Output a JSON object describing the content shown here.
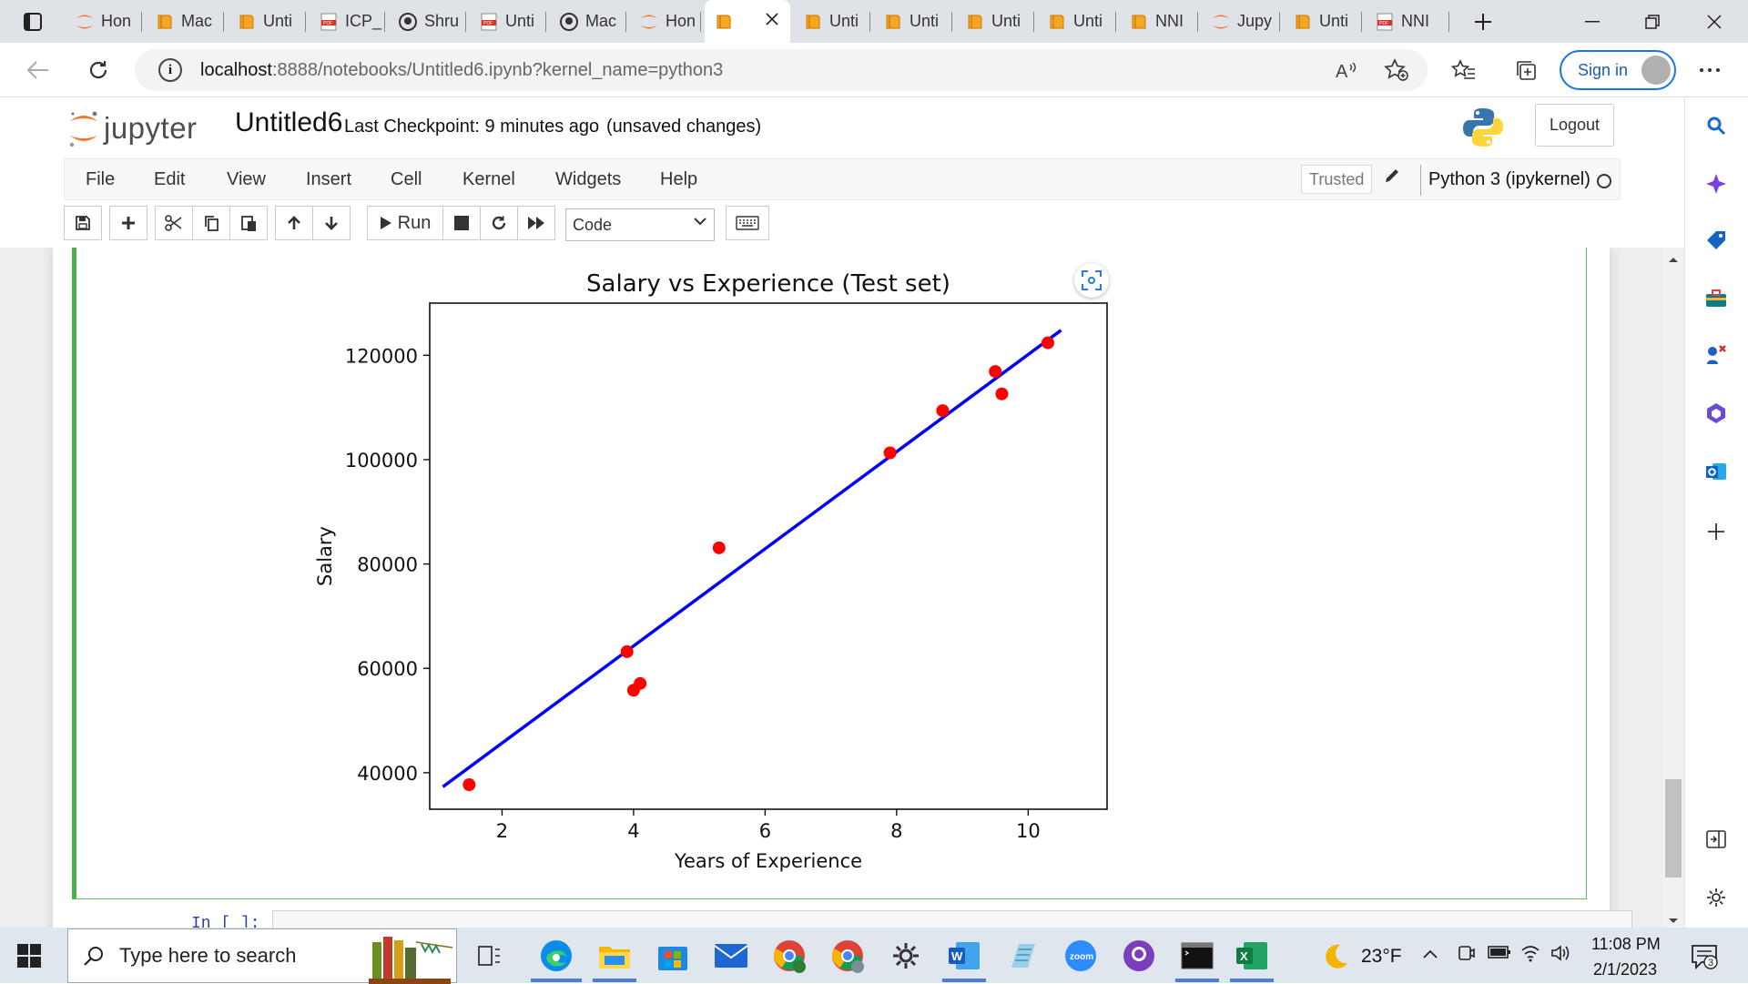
{
  "browser": {
    "tabs": [
      {
        "label": "Hon",
        "icon": "jupyter-tab-icon"
      },
      {
        "label": "Mac",
        "icon": "notebook-tab-icon"
      },
      {
        "label": "Unti",
        "icon": "notebook-tab-icon"
      },
      {
        "label": "ICP_",
        "icon": "pdf-tab-icon"
      },
      {
        "label": "Shru",
        "icon": "github-tab-icon"
      },
      {
        "label": "Unti",
        "icon": "pdf-tab-icon"
      },
      {
        "label": "Mac",
        "icon": "github-tab-icon"
      },
      {
        "label": "Hon",
        "icon": "jupyter-tab-icon"
      },
      {
        "label": "",
        "icon": "notebook-tab-icon",
        "active": true
      },
      {
        "label": "Unti",
        "icon": "notebook-tab-icon"
      },
      {
        "label": "Unti",
        "icon": "notebook-tab-icon"
      },
      {
        "label": "Unti",
        "icon": "notebook-tab-icon"
      },
      {
        "label": "Unti",
        "icon": "notebook-tab-icon"
      },
      {
        "label": "NNI",
        "icon": "notebook-tab-icon"
      },
      {
        "label": "Jupy",
        "icon": "jupyter-tab-icon"
      },
      {
        "label": "Unti",
        "icon": "notebook-tab-icon"
      },
      {
        "label": "NNI",
        "icon": "pdf-tab-icon"
      }
    ],
    "url_host": "localhost",
    "url_rest": ":8888/notebooks/Untitled6.ipynb?kernel_name=python3",
    "signin_label": "Sign in"
  },
  "jupyter": {
    "logo_text": "jupyter",
    "notebook_title": "Untitled6",
    "checkpoint": "Last Checkpoint: 9 minutes ago",
    "unsaved": "(unsaved changes)",
    "logout_label": "Logout",
    "menu": [
      "File",
      "Edit",
      "View",
      "Insert",
      "Cell",
      "Kernel",
      "Widgets",
      "Help"
    ],
    "trusted_label": "Trusted",
    "kernel_name": "Python 3 (ipykernel)",
    "toolbar": {
      "run_label": "Run",
      "cell_type": "Code"
    },
    "next_cell_prompt": "In [ ]:"
  },
  "chart_data": {
    "type": "scatter",
    "title": "Salary vs Experience (Test set)",
    "xlabel": "Years of Experience",
    "ylabel": "Salary",
    "xlim": [
      0.9,
      11.2
    ],
    "ylim": [
      33000,
      130000
    ],
    "xticks": [
      2,
      4,
      6,
      8,
      10
    ],
    "yticks": [
      40000,
      60000,
      80000,
      100000,
      120000
    ],
    "grid": false,
    "series": [
      {
        "kind": "scatter",
        "color": "#ff0000",
        "points": [
          [
            1.5,
            37700
          ],
          [
            3.9,
            63200
          ],
          [
            4.0,
            55800
          ],
          [
            4.1,
            57100
          ],
          [
            5.3,
            83100
          ],
          [
            7.9,
            101300
          ],
          [
            8.7,
            109400
          ],
          [
            9.5,
            116900
          ],
          [
            9.6,
            112600
          ],
          [
            10.3,
            122400
          ]
        ]
      },
      {
        "kind": "line",
        "color": "#0000ff",
        "points": [
          [
            1.1,
            37300
          ],
          [
            10.5,
            124800
          ]
        ]
      }
    ]
  },
  "taskbar": {
    "search_placeholder": "Type here to search",
    "temperature": "23°F",
    "time": "11:08 PM",
    "date": "2/1/2023",
    "notification_count": "3"
  }
}
